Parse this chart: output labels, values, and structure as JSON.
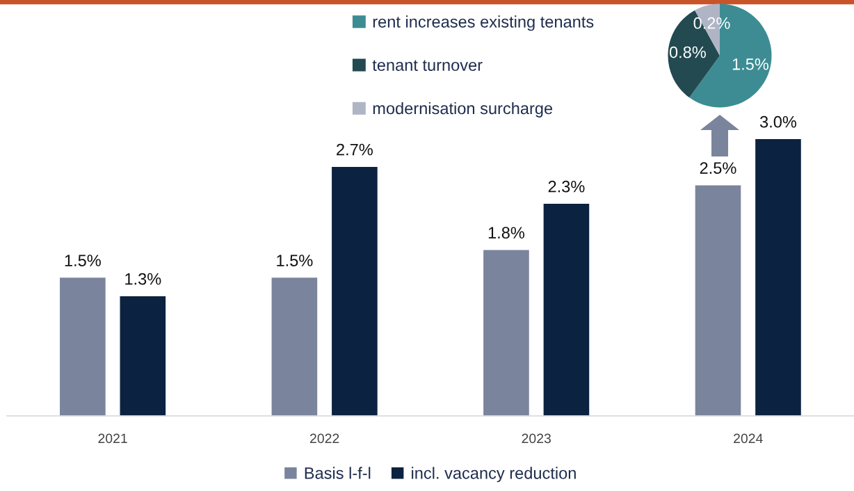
{
  "chart_data": [
    {
      "type": "bar",
      "categories": [
        "2021",
        "2022",
        "2023",
        "2024"
      ],
      "series": [
        {
          "name": "Basis l-f-l",
          "color": "#7a849c",
          "values": [
            1.5,
            1.5,
            1.8,
            2.5
          ],
          "value_labels": [
            "1.5%",
            "1.5%",
            "1.8%",
            "2.5%"
          ]
        },
        {
          "name": "incl. vacancy reduction",
          "color": "#0b2240",
          "values": [
            1.3,
            2.7,
            2.3,
            3.0
          ],
          "value_labels": [
            "1.3%",
            "2.7%",
            "2.3%",
            "3.0%"
          ]
        }
      ],
      "legend": "bottom",
      "grid": false
    },
    {
      "type": "pie",
      "categories": [
        "rent increases existing tenants",
        "tenant turnover",
        "modernisation surcharge"
      ],
      "values": [
        1.5,
        0.8,
        0.2
      ],
      "colors": [
        "#3d8c93",
        "#224a50",
        "#b0b5c6"
      ],
      "value_labels": [
        "1.5%",
        "0.8%",
        "0.2%"
      ],
      "legend": "left"
    }
  ]
}
